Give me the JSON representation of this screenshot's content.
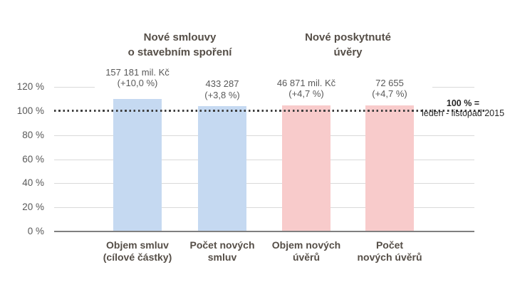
{
  "chart_data": {
    "type": "bar",
    "title": "",
    "ylim": [
      0,
      120
    ],
    "grid": true,
    "group_headers": [
      {
        "line1": "Nové smlouvy",
        "line2": "o stavebním spoření"
      },
      {
        "line1": "Nové poskytnuté",
        "line2": "úvěry"
      }
    ],
    "y_ticks": [
      {
        "label": "120 %",
        "value": 120
      },
      {
        "label": "100 %",
        "value": 100
      },
      {
        "label": "80 %",
        "value": 80
      },
      {
        "label": "60 %",
        "value": 60
      },
      {
        "label": "40 %",
        "value": 40
      },
      {
        "label": "20 %",
        "value": 20
      },
      {
        "label": "0 %",
        "value": 0
      }
    ],
    "bars": [
      {
        "name": "objem-smluv",
        "pct": 110.0,
        "color": "#C5D9F1",
        "value_line1": "157 181 mil. Kč",
        "value_line2": "(+10,0 %)",
        "category_line1": "Objem smluv",
        "category_line2": "(cílové částky)"
      },
      {
        "name": "pocet-novych-smluv",
        "pct": 103.8,
        "color": "#C5D9F1",
        "value_line1": "433 287",
        "value_line2": "(+3,8 %)",
        "category_line1": "Počet  nových",
        "category_line2": "smluv"
      },
      {
        "name": "objem-novych-uveru",
        "pct": 104.7,
        "color": "#F8CBCB",
        "value_line1": "46 871 mil. Kč",
        "value_line2": "(+4,7 %)",
        "category_line1": "Objem nových",
        "category_line2": "úvěrů"
      },
      {
        "name": "pocet-novych-uveru",
        "pct": 104.7,
        "color": "#F8CBCB",
        "value_line1": "72 655",
        "value_line2": "(+4,7 %)",
        "category_line1": "Počet",
        "category_line2": "nových úvěrů"
      }
    ],
    "reference_line": {
      "value": 100,
      "label_top": "100 % =",
      "label_bottom": "leden - listopad  2015"
    },
    "colors": {
      "bar_blue": "#C5D9F1",
      "bar_pink": "#F8CBCB",
      "gridline": "#D9D9D9",
      "axis": "#808080",
      "dotted_line": "#3F3F3F",
      "value_text": "#595959",
      "heading_text": "#554E47",
      "reference_text": "#262626"
    }
  }
}
